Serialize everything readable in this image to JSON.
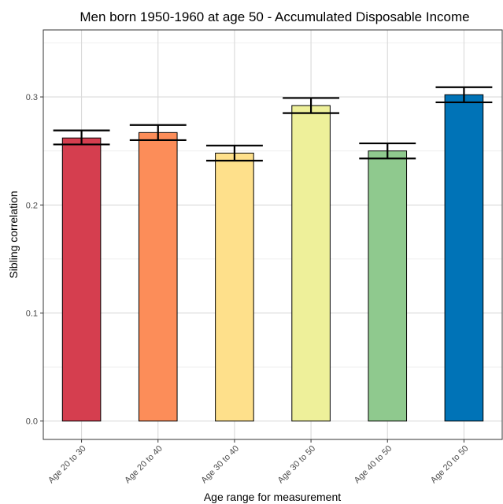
{
  "chart_data": {
    "type": "bar",
    "title": "Men born 1950-1960 at age 50 - Accumulated Disposable Income",
    "xlabel": "Age range for measurement",
    "ylabel": "Sibling correlation",
    "categories": [
      "Age 20 to 30",
      "Age 20 to 40",
      "Age 30 to 40",
      "Age 30 to 50",
      "Age 40 to 50",
      "Age 20 to 50"
    ],
    "values": [
      0.262,
      0.267,
      0.248,
      0.292,
      0.25,
      0.302
    ],
    "error_upper": [
      0.269,
      0.274,
      0.255,
      0.299,
      0.257,
      0.309
    ],
    "error_lower": [
      0.256,
      0.26,
      0.241,
      0.285,
      0.243,
      0.295
    ],
    "colors": [
      "#d53e4f",
      "#fc8d59",
      "#fee08b",
      "#eef09a",
      "#8fc98e",
      "#0073b7"
    ],
    "ylim": [
      -0.017,
      0.362
    ],
    "yticks": [
      0.0,
      0.1,
      0.2,
      0.3
    ],
    "ytick_labels": [
      "0.0",
      "0.1",
      "0.2",
      "0.3"
    ],
    "grid": true,
    "legend": "none"
  }
}
